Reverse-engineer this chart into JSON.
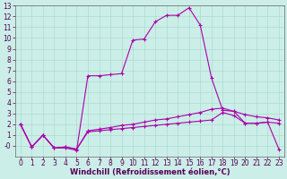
{
  "xlabel": "Windchill (Refroidissement éolien,°C)",
  "background_color": "#cceee8",
  "line_color": "#aa00aa",
  "series": {
    "line1_x": [
      0,
      1,
      2,
      3,
      4,
      5,
      6,
      7,
      8,
      9,
      10,
      11,
      12,
      13,
      14,
      15,
      16,
      17,
      18,
      19,
      20,
      21,
      22,
      23
    ],
    "line1_y": [
      2.0,
      -0.1,
      1.0,
      -0.2,
      -0.1,
      -0.3,
      1.3,
      1.4,
      1.5,
      1.6,
      1.7,
      1.8,
      1.9,
      2.0,
      2.1,
      2.2,
      2.3,
      2.4,
      3.1,
      2.8,
      2.1,
      2.1,
      2.2,
      2.1
    ],
    "line2_x": [
      0,
      1,
      2,
      3,
      4,
      5,
      6,
      7,
      8,
      9,
      10,
      11,
      12,
      13,
      14,
      15,
      16,
      17,
      18,
      19,
      20,
      21,
      22,
      23
    ],
    "line2_y": [
      2.0,
      -0.1,
      1.0,
      -0.2,
      -0.1,
      -0.3,
      1.4,
      1.55,
      1.7,
      1.9,
      2.0,
      2.2,
      2.4,
      2.5,
      2.7,
      2.9,
      3.1,
      3.4,
      3.5,
      3.2,
      2.9,
      2.7,
      2.6,
      2.4
    ],
    "line3_x": [
      0,
      1,
      2,
      3,
      4,
      5,
      6,
      7,
      8,
      9,
      10,
      11,
      12,
      13,
      14,
      15,
      16,
      17,
      18,
      19,
      20,
      21,
      22,
      23
    ],
    "line3_y": [
      2.0,
      -0.1,
      1.0,
      -0.2,
      -0.2,
      -0.4,
      6.5,
      6.5,
      6.6,
      6.7,
      9.8,
      9.9,
      11.5,
      12.1,
      12.1,
      12.8,
      11.2,
      6.3,
      3.3,
      3.2,
      2.1,
      2.1,
      2.2,
      -0.3
    ]
  },
  "xlim": [
    -0.5,
    23.5
  ],
  "ylim": [
    -1,
    13
  ],
  "yticks": [
    0,
    1,
    2,
    3,
    4,
    5,
    6,
    7,
    8,
    9,
    10,
    11,
    12,
    13
  ],
  "xticks": [
    0,
    1,
    2,
    3,
    4,
    5,
    6,
    7,
    8,
    9,
    10,
    11,
    12,
    13,
    14,
    15,
    16,
    17,
    18,
    19,
    20,
    21,
    22,
    23
  ],
  "grid_color": "#aaddcc",
  "tick_fontsize": 5.5,
  "label_fontsize": 6.0,
  "marker": "+",
  "markersize": 3,
  "linewidth": 0.8
}
